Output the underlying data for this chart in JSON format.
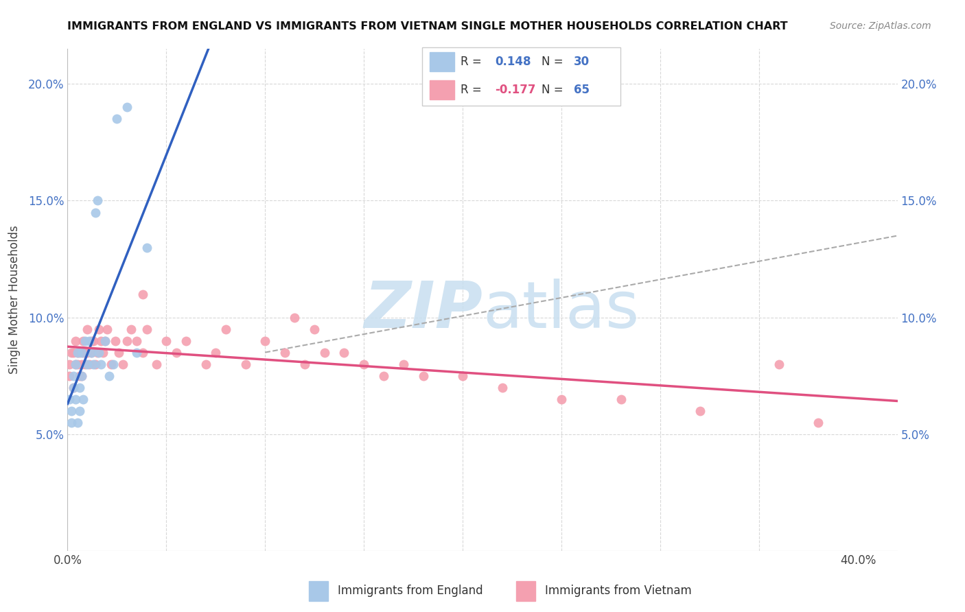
{
  "title": "IMMIGRANTS FROM ENGLAND VS IMMIGRANTS FROM VIETNAM SINGLE MOTHER HOUSEHOLDS CORRELATION CHART",
  "source": "Source: ZipAtlas.com",
  "ylabel": "Single Mother Households",
  "xlim": [
    0.0,
    0.42
  ],
  "ylim": [
    0.0,
    0.215
  ],
  "england_R": 0.148,
  "england_N": 30,
  "vietnam_R": -0.177,
  "vietnam_N": 65,
  "england_color": "#a8c8e8",
  "vietnam_color": "#f4a0b0",
  "england_line_color": "#3060c0",
  "vietnam_line_color": "#e05080",
  "dashed_line_color": "#aaaaaa",
  "grid_color": "#d8d8d8",
  "watermark_color": "#c8dff0",
  "ytick_color": "#4472c4",
  "england_x": [
    0.001,
    0.002,
    0.002,
    0.003,
    0.003,
    0.004,
    0.004,
    0.005,
    0.005,
    0.006,
    0.006,
    0.007,
    0.007,
    0.008,
    0.009,
    0.01,
    0.011,
    0.012,
    0.013,
    0.014,
    0.015,
    0.016,
    0.017,
    0.019,
    0.021,
    0.023,
    0.025,
    0.03,
    0.035,
    0.04
  ],
  "england_y": [
    0.065,
    0.06,
    0.055,
    0.075,
    0.07,
    0.08,
    0.065,
    0.085,
    0.055,
    0.07,
    0.06,
    0.085,
    0.075,
    0.065,
    0.09,
    0.08,
    0.09,
    0.085,
    0.08,
    0.145,
    0.15,
    0.085,
    0.08,
    0.09,
    0.075,
    0.08,
    0.185,
    0.19,
    0.085,
    0.13
  ],
  "vietnam_x": [
    0.001,
    0.001,
    0.002,
    0.003,
    0.003,
    0.004,
    0.004,
    0.005,
    0.005,
    0.006,
    0.006,
    0.007,
    0.007,
    0.008,
    0.008,
    0.009,
    0.01,
    0.01,
    0.011,
    0.012,
    0.012,
    0.013,
    0.014,
    0.015,
    0.016,
    0.017,
    0.018,
    0.019,
    0.02,
    0.022,
    0.024,
    0.026,
    0.028,
    0.03,
    0.032,
    0.035,
    0.038,
    0.04,
    0.045,
    0.05,
    0.055,
    0.06,
    0.07,
    0.075,
    0.08,
    0.09,
    0.1,
    0.11,
    0.12,
    0.13,
    0.15,
    0.16,
    0.17,
    0.18,
    0.2,
    0.22,
    0.25,
    0.28,
    0.32,
    0.36,
    0.038,
    0.115,
    0.125,
    0.14,
    0.38
  ],
  "vietnam_y": [
    0.075,
    0.08,
    0.085,
    0.07,
    0.085,
    0.08,
    0.09,
    0.08,
    0.085,
    0.075,
    0.085,
    0.075,
    0.08,
    0.085,
    0.09,
    0.08,
    0.085,
    0.095,
    0.08,
    0.085,
    0.09,
    0.09,
    0.08,
    0.085,
    0.095,
    0.09,
    0.085,
    0.09,
    0.095,
    0.08,
    0.09,
    0.085,
    0.08,
    0.09,
    0.095,
    0.09,
    0.085,
    0.095,
    0.08,
    0.09,
    0.085,
    0.09,
    0.08,
    0.085,
    0.095,
    0.08,
    0.09,
    0.085,
    0.08,
    0.085,
    0.08,
    0.075,
    0.08,
    0.075,
    0.075,
    0.07,
    0.065,
    0.065,
    0.06,
    0.08,
    0.11,
    0.1,
    0.095,
    0.085,
    0.055
  ]
}
